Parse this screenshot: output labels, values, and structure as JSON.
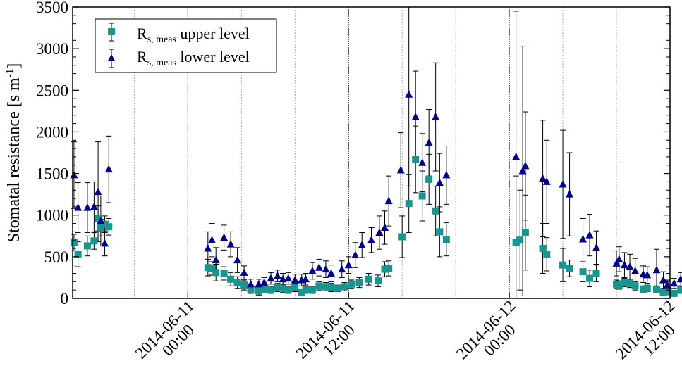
{
  "chart_data": {
    "type": "scatter",
    "ylabel_main": "Stomatal resistance [s m",
    "ylabel_sup": "-1",
    "ylabel_close": "]",
    "xlabel": "",
    "ylim": [
      0,
      3500
    ],
    "yticks": [
      0,
      500,
      1000,
      1500,
      2000,
      2500,
      3000,
      3500
    ],
    "xlim_hours": [
      -8.6,
      36
    ],
    "xtick_labels": [
      {
        "hour": 0,
        "line1": "2014-06-11",
        "line2": "00:00"
      },
      {
        "hour": 12,
        "line1": "2014-06-11",
        "line2": "12:00"
      },
      {
        "hour": 24,
        "line1": "2014-06-12",
        "line2": "00:00"
      },
      {
        "hour": 36,
        "line1": "2014-06-12",
        "line2": "12:00"
      }
    ],
    "grid_dotted_hours": [
      -4,
      4,
      8,
      16,
      20,
      28,
      32
    ],
    "grid_solid_hours": [
      0,
      12,
      24,
      36
    ],
    "legend_position": "top-left",
    "series": [
      {
        "name_main": "R",
        "name_sub": "s, meas",
        "name_rest": " upper level",
        "marker": "square",
        "color": "#17968f",
        "points": [
          [
            -8.5,
            670,
            100
          ],
          [
            -8.2,
            530,
            150
          ],
          [
            -7.5,
            630,
            120
          ],
          [
            -7,
            690,
            100
          ],
          [
            -6.7,
            960,
            150
          ],
          [
            -6.5,
            850,
            100
          ],
          [
            -6.2,
            890,
            100
          ],
          [
            -5.9,
            860,
            100
          ],
          [
            1.5,
            370,
            100
          ],
          [
            1.8,
            360,
            80
          ],
          [
            2.1,
            310,
            100
          ],
          [
            2.7,
            300,
            80
          ],
          [
            3.2,
            230,
            80
          ],
          [
            3.7,
            190,
            70
          ],
          [
            4.2,
            160,
            60
          ],
          [
            4.7,
            110,
            50
          ],
          [
            5.3,
            90,
            50
          ],
          [
            5.7,
            110,
            40
          ],
          [
            6.2,
            100,
            40
          ],
          [
            6.7,
            130,
            50
          ],
          [
            7.1,
            120,
            50
          ],
          [
            7.5,
            100,
            40
          ],
          [
            8.0,
            130,
            50
          ],
          [
            8.5,
            70,
            40
          ],
          [
            8.8,
            100,
            40
          ],
          [
            9.3,
            100,
            40
          ],
          [
            9.8,
            150,
            50
          ],
          [
            10.3,
            140,
            50
          ],
          [
            10.7,
            130,
            50
          ],
          [
            11.2,
            120,
            40
          ],
          [
            11.7,
            140,
            50
          ],
          [
            12.2,
            170,
            50
          ],
          [
            12.8,
            190,
            60
          ],
          [
            13.5,
            230,
            70
          ],
          [
            14.2,
            210,
            70
          ],
          [
            14.7,
            350,
            90
          ],
          [
            15.0,
            360,
            90
          ],
          [
            16.0,
            740,
            250
          ],
          [
            16.5,
            1140,
            350
          ],
          [
            17.0,
            1670,
            400
          ],
          [
            17.5,
            1230,
            300
          ],
          [
            18.0,
            1430,
            300
          ],
          [
            18.5,
            1050,
            300
          ],
          [
            18.8,
            800,
            300
          ],
          [
            19.3,
            710,
            200
          ],
          [
            24.5,
            670,
            800
          ],
          [
            24.8,
            700,
            600
          ],
          [
            25.2,
            790,
            450
          ],
          [
            26.5,
            600,
            300
          ],
          [
            26.8,
            530,
            200
          ],
          [
            28.0,
            400,
            200
          ],
          [
            28.5,
            360,
            100
          ],
          [
            29.5,
            320,
            120
          ],
          [
            30.0,
            240,
            100
          ],
          [
            30.5,
            300,
            100
          ],
          [
            32.0,
            170,
            50
          ],
          [
            32.2,
            160,
            50
          ],
          [
            32.6,
            190,
            50
          ],
          [
            33.0,
            180,
            50
          ],
          [
            33.4,
            150,
            50
          ],
          [
            34.0,
            110,
            40
          ],
          [
            34.3,
            120,
            40
          ],
          [
            35.0,
            110,
            40
          ],
          [
            35.5,
            70,
            30
          ],
          [
            35.8,
            80,
            30
          ],
          [
            36.3,
            60,
            30
          ],
          [
            36.8,
            100,
            40
          ],
          [
            37.2,
            130,
            40
          ]
        ]
      },
      {
        "name_main": "R",
        "name_sub": "s, meas",
        "name_rest": " lower level",
        "marker": "triangle",
        "color": "#00008b",
        "points": [
          [
            -8.5,
            1480,
            400
          ],
          [
            -8.2,
            1090,
            300
          ],
          [
            -7.5,
            1090,
            300
          ],
          [
            -7.0,
            1100,
            300
          ],
          [
            -6.7,
            1280,
            600
          ],
          [
            -6.5,
            930,
            300
          ],
          [
            -6.2,
            660,
            150
          ],
          [
            -5.9,
            1550,
            400
          ],
          [
            1.5,
            600,
            200
          ],
          [
            1.8,
            700,
            200
          ],
          [
            2.1,
            460,
            150
          ],
          [
            2.7,
            730,
            150
          ],
          [
            3.2,
            650,
            150
          ],
          [
            3.7,
            460,
            150
          ],
          [
            4.2,
            310,
            80
          ],
          [
            4.7,
            170,
            60
          ],
          [
            5.3,
            170,
            60
          ],
          [
            5.7,
            190,
            60
          ],
          [
            6.2,
            240,
            70
          ],
          [
            6.7,
            270,
            70
          ],
          [
            7.1,
            230,
            70
          ],
          [
            7.5,
            240,
            70
          ],
          [
            8.0,
            220,
            70
          ],
          [
            8.5,
            220,
            70
          ],
          [
            8.8,
            230,
            70
          ],
          [
            9.3,
            330,
            100
          ],
          [
            9.8,
            370,
            100
          ],
          [
            10.3,
            350,
            100
          ],
          [
            10.7,
            300,
            100
          ],
          [
            11.5,
            350,
            100
          ],
          [
            12.0,
            400,
            100
          ],
          [
            12.5,
            520,
            150
          ],
          [
            13.0,
            640,
            150
          ],
          [
            13.7,
            700,
            150
          ],
          [
            14.3,
            790,
            200
          ],
          [
            14.7,
            850,
            200
          ],
          [
            15.0,
            1170,
            300
          ],
          [
            15.9,
            1540,
            450
          ],
          [
            16.5,
            2450,
            1100
          ],
          [
            17.0,
            2180,
            550
          ],
          [
            17.5,
            1630,
            350
          ],
          [
            18.0,
            1870,
            400
          ],
          [
            18.5,
            2180,
            650
          ],
          [
            18.8,
            1390,
            350
          ],
          [
            19.3,
            1480,
            350
          ],
          [
            24.5,
            1700,
            1750
          ],
          [
            25.0,
            1530,
            1500
          ],
          [
            25.2,
            1590,
            650
          ],
          [
            26.5,
            1440,
            700
          ],
          [
            26.8,
            1400,
            500
          ],
          [
            28.0,
            1370,
            650
          ],
          [
            28.5,
            1250,
            500
          ],
          [
            29.5,
            710,
            250
          ],
          [
            30.0,
            760,
            250
          ],
          [
            30.5,
            610,
            200
          ],
          [
            32.0,
            420,
            150
          ],
          [
            32.2,
            470,
            150
          ],
          [
            32.6,
            400,
            150
          ],
          [
            33.0,
            380,
            150
          ],
          [
            33.4,
            330,
            150
          ],
          [
            34.0,
            290,
            100
          ],
          [
            34.3,
            280,
            100
          ],
          [
            35.0,
            340,
            250
          ],
          [
            35.5,
            220,
            100
          ],
          [
            35.8,
            160,
            60
          ],
          [
            36.3,
            180,
            60
          ],
          [
            36.8,
            230,
            80
          ],
          [
            37.2,
            260,
            80
          ]
        ]
      }
    ]
  }
}
